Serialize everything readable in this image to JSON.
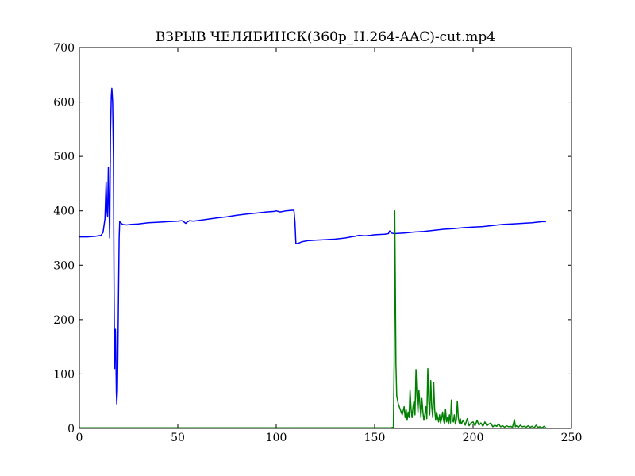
{
  "chart_data": {
    "type": "line",
    "title": "ВЗРЫВ ЧЕЛЯБИНСК(360p_H.264-AAC)-cut.mp4",
    "xlabel": "",
    "ylabel": "",
    "xlim": [
      0,
      250
    ],
    "ylim": [
      0,
      700
    ],
    "xticks": [
      0,
      50,
      100,
      150,
      200,
      250
    ],
    "yticks": [
      0,
      100,
      200,
      300,
      400,
      500,
      600,
      700
    ],
    "grid": false,
    "legend": "none",
    "series": [
      {
        "color": "#0000ff",
        "points": [
          [
            0,
            352
          ],
          [
            4,
            352
          ],
          [
            8,
            353
          ],
          [
            11,
            355
          ],
          [
            12,
            360
          ],
          [
            13,
            385
          ],
          [
            13.6,
            452
          ],
          [
            14,
            400
          ],
          [
            14.3,
            390
          ],
          [
            14.7,
            480
          ],
          [
            15,
            420
          ],
          [
            15.4,
            350
          ],
          [
            15.8,
            545
          ],
          [
            16.2,
            610
          ],
          [
            16.5,
            625
          ],
          [
            16.9,
            600
          ],
          [
            17.3,
            500
          ],
          [
            17.6,
            280
          ],
          [
            17.9,
            110
          ],
          [
            18.1,
            180
          ],
          [
            18.3,
            182
          ],
          [
            18.5,
            140
          ],
          [
            18.8,
            65
          ],
          [
            19,
            45
          ],
          [
            19.3,
            70
          ],
          [
            19.6,
            150
          ],
          [
            19.9,
            260
          ],
          [
            20.2,
            350
          ],
          [
            20.5,
            380
          ],
          [
            21,
            378
          ],
          [
            22,
            375
          ],
          [
            24,
            374
          ],
          [
            26,
            375
          ],
          [
            30,
            376
          ],
          [
            35,
            378
          ],
          [
            40,
            379
          ],
          [
            45,
            380
          ],
          [
            50,
            381
          ],
          [
            52,
            382
          ],
          [
            53,
            380
          ],
          [
            54,
            377
          ],
          [
            55,
            380
          ],
          [
            56,
            382
          ],
          [
            58,
            381
          ],
          [
            62,
            383
          ],
          [
            66,
            385
          ],
          [
            70,
            387
          ],
          [
            75,
            389
          ],
          [
            80,
            392
          ],
          [
            85,
            394
          ],
          [
            90,
            396
          ],
          [
            95,
            398
          ],
          [
            99,
            399
          ],
          [
            100,
            400
          ],
          [
            102,
            398
          ],
          [
            105,
            400
          ],
          [
            108,
            401
          ],
          [
            109,
            401
          ],
          [
            109.5,
            380
          ],
          [
            110,
            340
          ],
          [
            111,
            340
          ],
          [
            113,
            343
          ],
          [
            116,
            345
          ],
          [
            120,
            346
          ],
          [
            125,
            347
          ],
          [
            130,
            348
          ],
          [
            135,
            350
          ],
          [
            138,
            352
          ],
          [
            140,
            353
          ],
          [
            142,
            355
          ],
          [
            145,
            354
          ],
          [
            148,
            355
          ],
          [
            150,
            356
          ],
          [
            155,
            357
          ],
          [
            157,
            358
          ],
          [
            157.6,
            363
          ],
          [
            158,
            362
          ],
          [
            158.5,
            359
          ],
          [
            160,
            358
          ],
          [
            165,
            359
          ],
          [
            170,
            361
          ],
          [
            175,
            362
          ],
          [
            180,
            364
          ],
          [
            185,
            366
          ],
          [
            190,
            367
          ],
          [
            195,
            369
          ],
          [
            200,
            370
          ],
          [
            205,
            371
          ],
          [
            210,
            373
          ],
          [
            215,
            375
          ],
          [
            220,
            376
          ],
          [
            225,
            377
          ],
          [
            230,
            378
          ],
          [
            235,
            380
          ],
          [
            237,
            380
          ]
        ]
      },
      {
        "color": "#008000",
        "points": [
          [
            0,
            1
          ],
          [
            20,
            1
          ],
          [
            40,
            1
          ],
          [
            60,
            1
          ],
          [
            80,
            1
          ],
          [
            100,
            1
          ],
          [
            120,
            1
          ],
          [
            140,
            1
          ],
          [
            158,
            1
          ],
          [
            159.5,
            2
          ],
          [
            159.9,
            120
          ],
          [
            160.2,
            400
          ],
          [
            160.5,
            280
          ],
          [
            160.8,
            120
          ],
          [
            161.2,
            60
          ],
          [
            162,
            45
          ],
          [
            163,
            35
          ],
          [
            164,
            25
          ],
          [
            165,
            40
          ],
          [
            165.5,
            20
          ],
          [
            166,
            35
          ],
          [
            166.5,
            15
          ],
          [
            167,
            30
          ],
          [
            167.5,
            20
          ],
          [
            168,
            70
          ],
          [
            168.5,
            35
          ],
          [
            169,
            20
          ],
          [
            169.5,
            40
          ],
          [
            170,
            50
          ],
          [
            170.5,
            25
          ],
          [
            171,
            108
          ],
          [
            171.5,
            60
          ],
          [
            172,
            30
          ],
          [
            172.5,
            70
          ],
          [
            173,
            45
          ],
          [
            173.5,
            20
          ],
          [
            174,
            55
          ],
          [
            174.5,
            30
          ],
          [
            175,
            15
          ],
          [
            175.5,
            25
          ],
          [
            176,
            40
          ],
          [
            176.5,
            18
          ],
          [
            177,
            110
          ],
          [
            177.5,
            50
          ],
          [
            178,
            25
          ],
          [
            178.5,
            88
          ],
          [
            179,
            40
          ],
          [
            179.5,
            20
          ],
          [
            180,
            85
          ],
          [
            180.5,
            35
          ],
          [
            181,
            15
          ],
          [
            181.5,
            30
          ],
          [
            182,
            20
          ],
          [
            182.5,
            12
          ],
          [
            183,
            25
          ],
          [
            183.5,
            10
          ],
          [
            184,
            18
          ],
          [
            184.5,
            30
          ],
          [
            185,
            15
          ],
          [
            185.5,
            8
          ],
          [
            186,
            35
          ],
          [
            186.5,
            12
          ],
          [
            187,
            20
          ],
          [
            187.5,
            8
          ],
          [
            188,
            25
          ],
          [
            188.5,
            10
          ],
          [
            189,
            52
          ],
          [
            189.5,
            15
          ],
          [
            190,
            12
          ],
          [
            190.5,
            25
          ],
          [
            191,
            8
          ],
          [
            191.5,
            15
          ],
          [
            192,
            50
          ],
          [
            192.5,
            20
          ],
          [
            193,
            10
          ],
          [
            193.5,
            18
          ],
          [
            194,
            8
          ],
          [
            195,
            15
          ],
          [
            196,
            6
          ],
          [
            197,
            18
          ],
          [
            198,
            5
          ],
          [
            199,
            10
          ],
          [
            200,
            12
          ],
          [
            201,
            5
          ],
          [
            202,
            15
          ],
          [
            203,
            6
          ],
          [
            204,
            10
          ],
          [
            205,
            4
          ],
          [
            206,
            12
          ],
          [
            207,
            5
          ],
          [
            208,
            8
          ],
          [
            209,
            10
          ],
          [
            210,
            3
          ],
          [
            211,
            6
          ],
          [
            212,
            4
          ],
          [
            213,
            8
          ],
          [
            214,
            3
          ],
          [
            215,
            5
          ],
          [
            216,
            2
          ],
          [
            217,
            5
          ],
          [
            218,
            3
          ],
          [
            219,
            4
          ],
          [
            220,
            2
          ],
          [
            221,
            16
          ],
          [
            221.5,
            3
          ],
          [
            222,
            5
          ],
          [
            223,
            2
          ],
          [
            224,
            6
          ],
          [
            225,
            3
          ],
          [
            226,
            4
          ],
          [
            227,
            2
          ],
          [
            228,
            5
          ],
          [
            229,
            2
          ],
          [
            230,
            4
          ],
          [
            231,
            1
          ],
          [
            232,
            6
          ],
          [
            233,
            2
          ],
          [
            234,
            3
          ],
          [
            235,
            1
          ],
          [
            236,
            4
          ],
          [
            237,
            1
          ]
        ]
      }
    ]
  }
}
